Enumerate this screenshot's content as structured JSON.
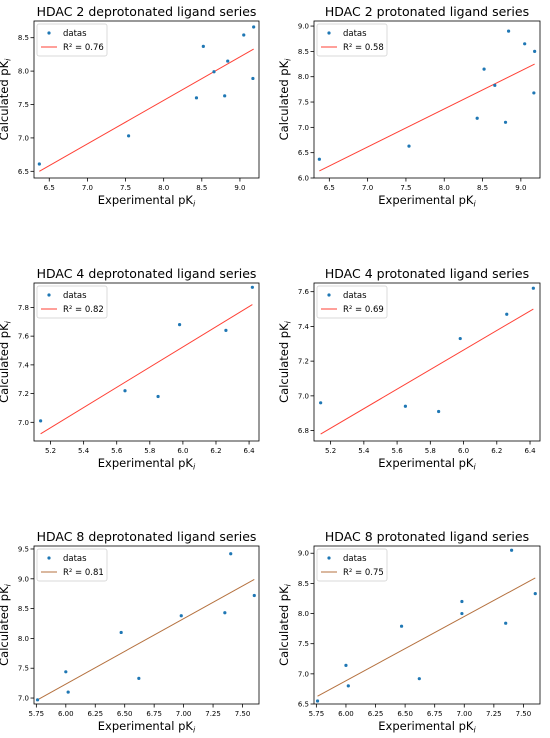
{
  "chart_data": [
    {
      "type": "scatter",
      "title": "HDAC 2 deprotonated ligand series",
      "xlabel": "Experimental pK",
      "xlabel_sub": "i",
      "ylabel": "Calculated pK",
      "ylabel_sub": "i",
      "xlim": [
        6.3,
        9.25
      ],
      "ylim": [
        6.4,
        8.75
      ],
      "xticks": [
        "6.5",
        "7.0",
        "7.5",
        "8.0",
        "8.5",
        "9.0"
      ],
      "xtick_values": [
        6.5,
        7.0,
        7.5,
        8.0,
        8.5,
        9.0
      ],
      "yticks": [
        "6.5",
        "7.0",
        "7.5",
        "8.0",
        "8.5"
      ],
      "ytick_values": [
        6.5,
        7.0,
        7.5,
        8.0,
        8.5
      ],
      "series": [
        {
          "name": "datas",
          "type": "scatter",
          "color": "#1f77b4",
          "x": [
            6.37,
            7.54,
            8.43,
            8.52,
            8.66,
            8.8,
            8.84,
            9.05,
            9.17,
            9.18
          ],
          "y": [
            6.61,
            7.03,
            7.6,
            8.37,
            7.99,
            7.63,
            8.15,
            8.54,
            7.89,
            8.66
          ]
        },
        {
          "name": "R² = 0.76",
          "type": "line",
          "color": "#ff4136",
          "x": [
            6.37,
            9.18
          ],
          "y": [
            6.5,
            8.33
          ]
        }
      ],
      "legend": "top-left",
      "grid": false
    },
    {
      "type": "scatter",
      "title": "HDAC 2 protonated ligand series",
      "xlabel": "Experimental pK",
      "xlabel_sub": "i",
      "ylabel": "Calculated pK",
      "ylabel_sub": "i",
      "xlim": [
        6.3,
        9.25
      ],
      "ylim": [
        6.0,
        9.1
      ],
      "xticks": [
        "6.5",
        "7.0",
        "7.5",
        "8.0",
        "8.5",
        "9.0"
      ],
      "xtick_values": [
        6.5,
        7.0,
        7.5,
        8.0,
        8.5,
        9.0
      ],
      "yticks": [
        "6.0",
        "6.5",
        "7.0",
        "7.5",
        "8.0",
        "8.5",
        "9.0"
      ],
      "ytick_values": [
        6.0,
        6.5,
        7.0,
        7.5,
        8.0,
        8.5,
        9.0
      ],
      "series": [
        {
          "name": "datas",
          "type": "scatter",
          "color": "#1f77b4",
          "x": [
            6.37,
            7.54,
            8.43,
            8.52,
            8.66,
            8.8,
            8.84,
            9.05,
            9.17,
            9.18
          ],
          "y": [
            6.37,
            6.63,
            7.18,
            8.15,
            7.83,
            7.1,
            8.9,
            8.65,
            7.68,
            8.5
          ]
        },
        {
          "name": "R² = 0.58",
          "type": "line",
          "color": "#ff4136",
          "x": [
            6.37,
            9.18
          ],
          "y": [
            6.14,
            8.25
          ]
        }
      ],
      "legend": "top-left",
      "grid": false
    },
    {
      "type": "scatter",
      "title": "HDAC 4 deprotonated ligand series",
      "xlabel": "Experimental pK",
      "xlabel_sub": "i",
      "ylabel": "Calculated pK",
      "ylabel_sub": "i",
      "xlim": [
        5.1,
        6.46
      ],
      "ylim": [
        6.87,
        7.97
      ],
      "xticks": [
        "5.2",
        "5.4",
        "5.6",
        "5.8",
        "6.0",
        "6.2",
        "6.4"
      ],
      "xtick_values": [
        5.2,
        5.4,
        5.6,
        5.8,
        6.0,
        6.2,
        6.4
      ],
      "yticks": [
        "7.0",
        "7.2",
        "7.4",
        "7.6",
        "7.8"
      ],
      "ytick_values": [
        7.0,
        7.2,
        7.4,
        7.6,
        7.8
      ],
      "series": [
        {
          "name": "datas",
          "type": "scatter",
          "color": "#1f77b4",
          "x": [
            5.14,
            5.65,
            5.85,
            5.98,
            6.26,
            6.42
          ],
          "y": [
            7.01,
            7.22,
            7.18,
            7.68,
            7.64,
            7.94
          ]
        },
        {
          "name": "R² = 0.82",
          "type": "line",
          "color": "#ff4136",
          "x": [
            5.14,
            6.42
          ],
          "y": [
            6.92,
            7.82
          ]
        }
      ],
      "legend": "top-left",
      "grid": false
    },
    {
      "type": "scatter",
      "title": "HDAC 4 protonated ligand series",
      "xlabel": "Experimental pK",
      "xlabel_sub": "i",
      "ylabel": "Calculated pK",
      "ylabel_sub": "i",
      "xlim": [
        5.1,
        6.46
      ],
      "ylim": [
        6.74,
        7.65
      ],
      "xticks": [
        "5.2",
        "5.4",
        "5.6",
        "5.8",
        "6.0",
        "6.2",
        "6.4"
      ],
      "xtick_values": [
        5.2,
        5.4,
        5.6,
        5.8,
        6.0,
        6.2,
        6.4
      ],
      "yticks": [
        "6.8",
        "7.0",
        "7.2",
        "7.4",
        "7.6"
      ],
      "ytick_values": [
        6.8,
        7.0,
        7.2,
        7.4,
        7.6
      ],
      "series": [
        {
          "name": "datas",
          "type": "scatter",
          "color": "#1f77b4",
          "x": [
            5.14,
            5.65,
            5.85,
            5.98,
            6.26,
            6.42
          ],
          "y": [
            6.96,
            6.94,
            6.91,
            7.33,
            7.47,
            7.62
          ]
        },
        {
          "name": "R² = 0.69",
          "type": "line",
          "color": "#ff4136",
          "x": [
            5.14,
            6.42
          ],
          "y": [
            6.78,
            7.5
          ]
        }
      ],
      "legend": "top-left",
      "grid": false
    },
    {
      "type": "scatter",
      "title": "HDAC 8 deprotonated ligand series",
      "xlabel": "Experimental pK",
      "xlabel_sub": "i",
      "ylabel": "Calculated pK",
      "ylabel_sub": "i",
      "xlim": [
        5.73,
        7.64
      ],
      "ylim": [
        6.9,
        9.55
      ],
      "xticks": [
        "5.75",
        "6.00",
        "6.25",
        "6.50",
        "6.75",
        "7.00",
        "7.25",
        "7.50"
      ],
      "xtick_values": [
        5.75,
        6.0,
        6.25,
        6.5,
        6.75,
        7.0,
        7.25,
        7.5
      ],
      "yticks": [
        "7.0",
        "7.5",
        "8.0",
        "8.5",
        "9.0",
        "9.5"
      ],
      "ytick_values": [
        7.0,
        7.5,
        8.0,
        8.5,
        9.0,
        9.5
      ],
      "series": [
        {
          "name": "datas",
          "type": "scatter",
          "color": "#1f77b4",
          "x": [
            5.76,
            6.0,
            6.02,
            6.47,
            6.62,
            6.98,
            7.35,
            7.4,
            7.6
          ],
          "y": [
            6.97,
            7.44,
            7.1,
            8.1,
            7.33,
            8.38,
            8.43,
            9.42,
            8.72
          ]
        },
        {
          "name": "R² = 0.81",
          "type": "line",
          "color": "#b5713f",
          "x": [
            5.76,
            7.6
          ],
          "y": [
            6.97,
            8.99
          ]
        }
      ],
      "legend": "top-left",
      "grid": false
    },
    {
      "type": "scatter",
      "title": "HDAC 8 protonated ligand series",
      "xlabel": "Experimental pK",
      "xlabel_sub": "i",
      "ylabel": "Calculated pK",
      "ylabel_sub": "i",
      "xlim": [
        5.73,
        7.64
      ],
      "ylim": [
        6.5,
        9.12
      ],
      "xticks": [
        "5.75",
        "6.00",
        "6.25",
        "6.50",
        "6.75",
        "7.00",
        "7.25",
        "7.50"
      ],
      "xtick_values": [
        5.75,
        6.0,
        6.25,
        6.5,
        6.75,
        7.0,
        7.25,
        7.5
      ],
      "yticks": [
        "6.5",
        "7.0",
        "7.5",
        "8.0",
        "8.5",
        "9.0"
      ],
      "ytick_values": [
        6.5,
        7.0,
        7.5,
        8.0,
        8.5,
        9.0
      ],
      "series": [
        {
          "name": "datas",
          "type": "scatter",
          "color": "#1f77b4",
          "x": [
            5.76,
            6.0,
            6.02,
            6.47,
            6.62,
            6.98,
            6.98,
            7.35,
            7.4,
            7.6
          ],
          "y": [
            6.55,
            7.14,
            6.8,
            7.79,
            6.92,
            8.2,
            8.0,
            7.84,
            9.05,
            8.33
          ]
        },
        {
          "name": "R² = 0.75",
          "type": "line",
          "color": "#b5713f",
          "x": [
            5.76,
            7.6
          ],
          "y": [
            6.63,
            8.59
          ]
        }
      ],
      "legend": "top-left",
      "grid": false
    }
  ]
}
